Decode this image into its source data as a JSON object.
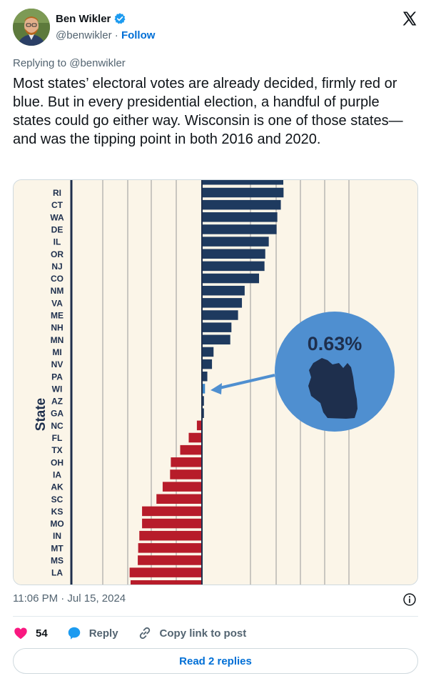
{
  "author": {
    "name": "Ben Wikler",
    "handle": "@benwikler",
    "separator": "·",
    "follow_label": "Follow"
  },
  "tweet": {
    "replying_to": "Replying to @benwikler",
    "text": "Most states’ electoral votes are already decided, firmly red or blue. But in every presidential election, a handful of purple states could go either way. Wisconsin is one of those states—and was the tipping point in both 2016 and 2020.",
    "timestamp": "11:06 PM · Jul 15, 2024"
  },
  "actions": {
    "like_count": "54",
    "reply_label": "Reply",
    "copy_label": "Copy link to post",
    "read_replies_label": "Read 2 replies"
  },
  "chart_data": {
    "type": "bar",
    "orientation": "horizontal",
    "axis_label": "State",
    "callout_value": "0.63%",
    "callout_state": "WI",
    "categories": [
      "RI",
      "CT",
      "WA",
      "DE",
      "IL",
      "OR",
      "NJ",
      "CO",
      "NM",
      "VA",
      "ME",
      "NH",
      "MN",
      "MI",
      "NV",
      "PA",
      "WI",
      "AZ",
      "GA",
      "NC",
      "FL",
      "TX",
      "OH",
      "IA",
      "AK",
      "SC",
      "KS",
      "MO",
      "IN",
      "MT",
      "MS",
      "LA"
    ],
    "values": [
      20.8,
      20.1,
      19.2,
      19.0,
      17.0,
      16.1,
      15.9,
      14.5,
      10.8,
      10.1,
      9.1,
      7.4,
      7.1,
      2.8,
      2.4,
      1.2,
      0.6,
      0.3,
      0.2,
      -1.3,
      -3.4,
      -5.6,
      -8.0,
      -8.2,
      -10.1,
      -11.7,
      -15.4,
      -15.4,
      -16.1,
      -16.4,
      -16.5,
      -18.6
    ],
    "colors": {
      "blue": "#1e3a5f",
      "red": "#b71c2a",
      "callout": "#4f8fd0",
      "wi": "#3a84c7"
    }
  }
}
